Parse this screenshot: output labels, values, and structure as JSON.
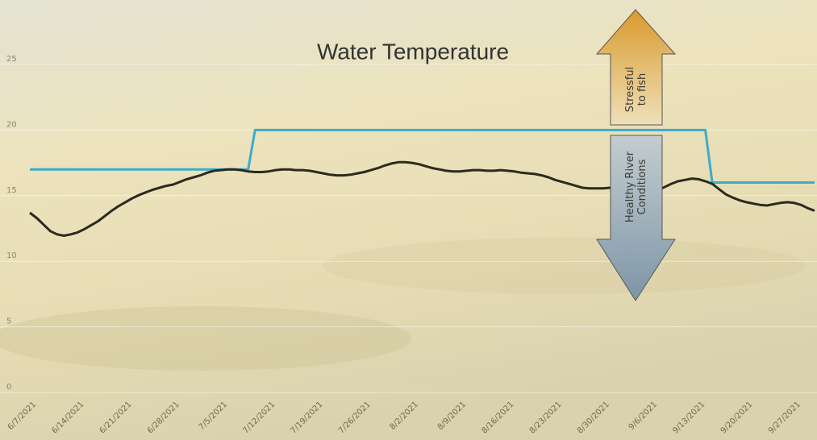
{
  "chart_data": {
    "type": "line",
    "title": "Water Temperature",
    "categories": [
      "6/7/2021",
      null,
      null,
      null,
      null,
      null,
      null,
      "6/14/2021",
      null,
      null,
      null,
      null,
      null,
      null,
      "6/21/2021",
      null,
      null,
      null,
      null,
      null,
      null,
      "6/28/2021",
      null,
      null,
      null,
      null,
      null,
      null,
      "7/5/2021",
      null,
      null,
      null,
      null,
      null,
      null,
      "7/12/2021",
      null,
      null,
      null,
      null,
      null,
      null,
      "7/19/2021",
      null,
      null,
      null,
      null,
      null,
      null,
      "7/26/2021",
      null,
      null,
      null,
      null,
      null,
      null,
      "8/2/2021",
      null,
      null,
      null,
      null,
      null,
      null,
      "8/9/2021",
      null,
      null,
      null,
      null,
      null,
      null,
      "8/16/2021",
      null,
      null,
      null,
      null,
      null,
      null,
      "8/23/2021",
      null,
      null,
      null,
      null,
      null,
      null,
      "8/30/2021",
      null,
      null,
      null,
      null,
      null,
      null,
      "9/6/2021",
      null,
      null,
      null,
      null,
      null,
      null,
      "9/13/2021",
      null,
      null,
      null,
      null,
      null,
      null,
      "9/20/2021",
      null,
      null,
      null,
      null,
      null,
      null,
      "9/27/2021",
      null,
      null,
      null
    ],
    "series": [
      {
        "color": "#2b2a20",
        "values": [
          13.7,
          13.3,
          12.8,
          12.3,
          12.05,
          11.95,
          12.05,
          12.2,
          12.45,
          12.75,
          13.05,
          13.45,
          13.85,
          14.2,
          14.5,
          14.8,
          15.05,
          15.25,
          15.45,
          15.6,
          15.75,
          15.85,
          16.05,
          16.25,
          16.4,
          16.55,
          16.75,
          16.9,
          16.95,
          17.0,
          17.0,
          16.95,
          16.85,
          16.8,
          16.8,
          16.85,
          16.95,
          17.0,
          17.0,
          16.95,
          16.95,
          16.9,
          16.8,
          16.7,
          16.6,
          16.55,
          16.55,
          16.6,
          16.7,
          16.8,
          16.95,
          17.1,
          17.3,
          17.45,
          17.55,
          17.55,
          17.5,
          17.4,
          17.25,
          17.1,
          17.0,
          16.9,
          16.85,
          16.85,
          16.9,
          16.95,
          16.95,
          16.9,
          16.9,
          16.95,
          16.9,
          16.85,
          16.75,
          16.7,
          16.65,
          16.55,
          16.4,
          16.2,
          16.05,
          15.9,
          15.75,
          15.6,
          15.55,
          15.55,
          15.55,
          15.6,
          15.55,
          15.5,
          15.45,
          15.4,
          15.35,
          15.3,
          15.4,
          15.65,
          15.9,
          16.1,
          16.2,
          16.3,
          16.25,
          16.1,
          15.9,
          15.5,
          15.1,
          14.85,
          14.65,
          14.5,
          14.4,
          14.3,
          14.25,
          14.35,
          14.45,
          14.5,
          14.45,
          14.3,
          14.05,
          13.85
        ]
      },
      {
        "color": "#3aaccc",
        "values": [
          17,
          17,
          17,
          17,
          17,
          17,
          17,
          17,
          17,
          17,
          17,
          17,
          17,
          17,
          17,
          17,
          17,
          17,
          17,
          17,
          17,
          17,
          17,
          17,
          17,
          17,
          17,
          17,
          17,
          17,
          17,
          17,
          17,
          20,
          20,
          20,
          20,
          20,
          20,
          20,
          20,
          20,
          20,
          20,
          20,
          20,
          20,
          20,
          20,
          20,
          20,
          20,
          20,
          20,
          20,
          20,
          20,
          20,
          20,
          20,
          20,
          20,
          20,
          20,
          20,
          20,
          20,
          20,
          20,
          20,
          20,
          20,
          20,
          20,
          20,
          20,
          20,
          20,
          20,
          20,
          20,
          20,
          20,
          20,
          20,
          20,
          20,
          20,
          20,
          20,
          20,
          20,
          20,
          20,
          20,
          20,
          20,
          20,
          20,
          20,
          16,
          16,
          16,
          16,
          16,
          16,
          16,
          16,
          16,
          16,
          16,
          16,
          16,
          16,
          16,
          16
        ]
      }
    ],
    "ylim": [
      0,
      25
    ],
    "yticks": [
      0,
      5,
      10,
      15,
      20,
      25
    ],
    "grid": true,
    "annotations": [
      [
        "Stressful",
        "to fish"
      ],
      [
        "Healthy River",
        "Conditions"
      ]
    ]
  }
}
